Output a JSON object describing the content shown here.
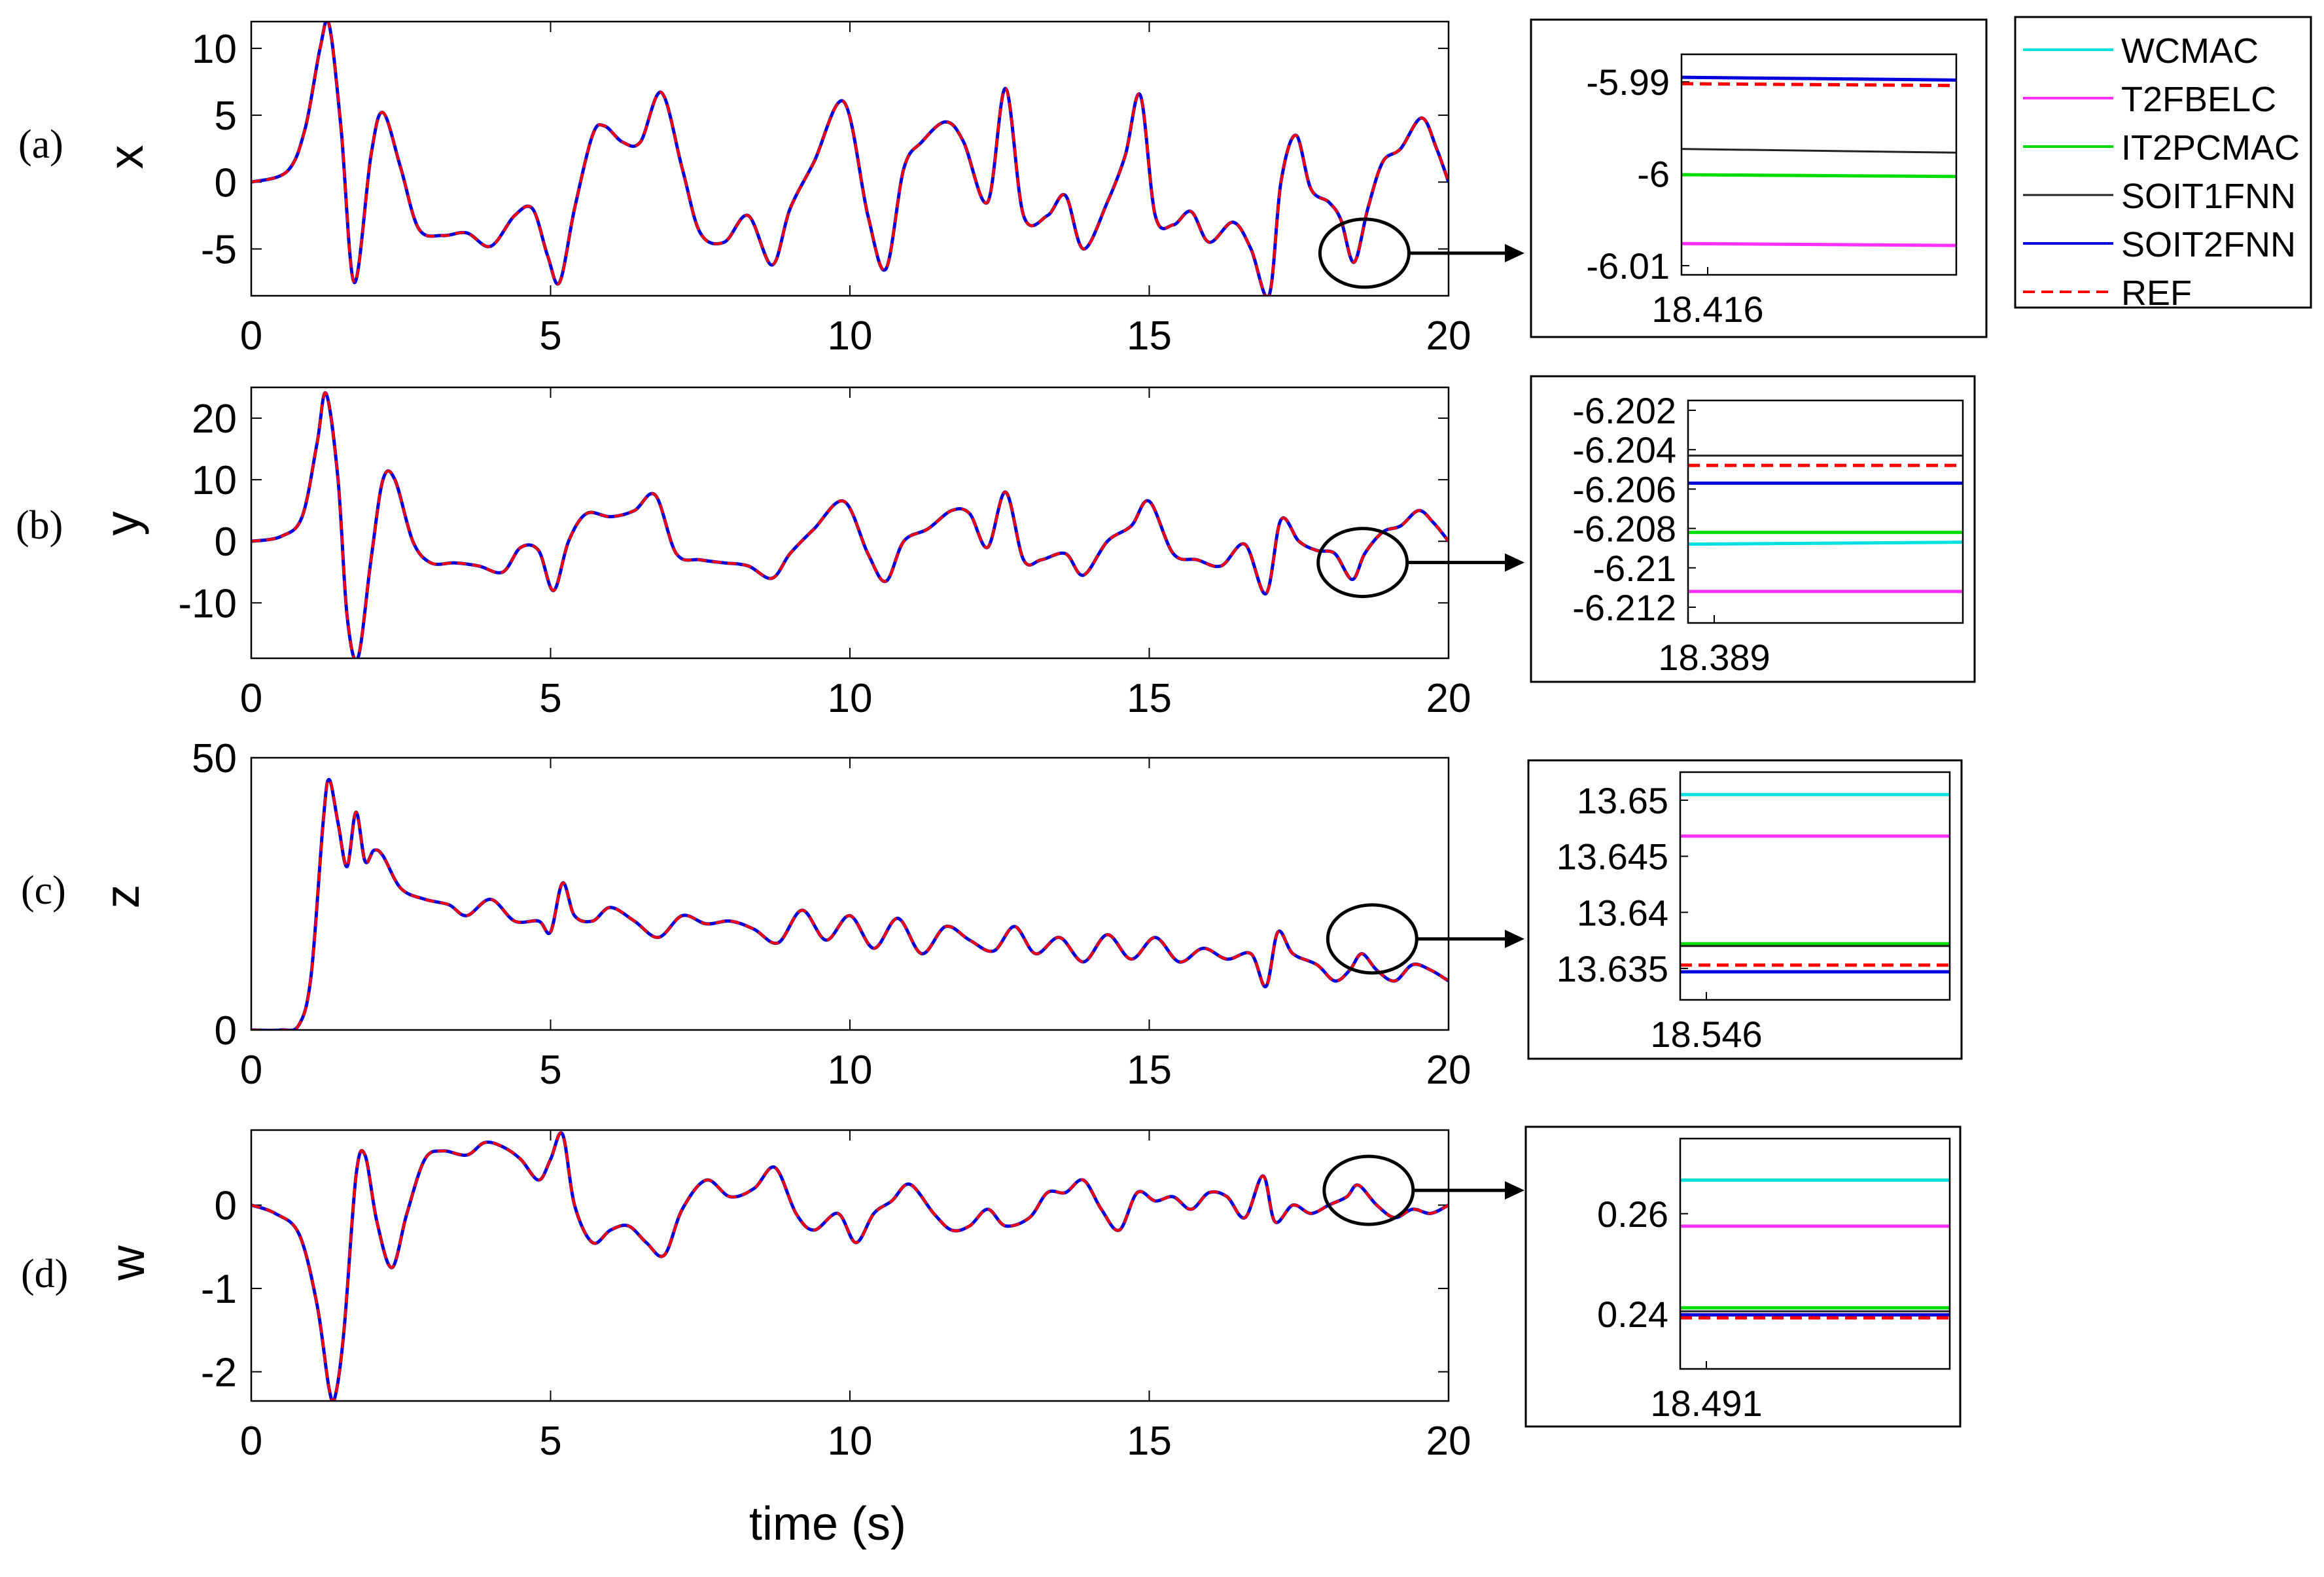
{
  "figure": {
    "xlabel": "time (s)"
  },
  "colors": {
    "WCMAC": "#00e0e0",
    "T2FBELC": "#ff30ff",
    "IT2PCMAC": "#00dd00",
    "SOIT1FNN": "#222222",
    "SOIT2FNN": "#0000dd",
    "REF": "#ff0000"
  },
  "legend": {
    "entries": [
      {
        "key": "WCMAC",
        "label": "WCMAC",
        "style": "solid"
      },
      {
        "key": "T2FBELC",
        "label": "T2FBELC",
        "style": "solid"
      },
      {
        "key": "IT2PCMAC",
        "label": "IT2PCMAC",
        "style": "solid"
      },
      {
        "key": "SOIT1FNN",
        "label": "SOIT1FNN",
        "style": "solid"
      },
      {
        "key": "SOIT2FNN",
        "label": "SOIT2FNN",
        "style": "solid"
      },
      {
        "key": "REF",
        "label": "REF",
        "style": "dashed"
      }
    ]
  },
  "chart_data": [
    {
      "type": "line",
      "panel": "(a)",
      "ylabel": "x",
      "xlim": [
        0,
        20
      ],
      "ylim": [
        -8.5,
        12
      ],
      "xticks": [
        0,
        5,
        10,
        15,
        20
      ],
      "yticks": [
        10,
        5,
        0,
        -5
      ],
      "series_names": [
        "SOIT2FNN",
        "REF"
      ],
      "highlight": {
        "t": 18.42,
        "value": -6.0
      },
      "x": [
        0,
        0.6,
        0.9,
        1.15,
        1.3,
        1.5,
        1.72,
        2.0,
        2.2,
        2.5,
        2.8,
        3.2,
        3.6,
        4.0,
        4.4,
        4.7,
        4.95,
        5.15,
        5.4,
        5.7,
        5.9,
        6.2,
        6.5,
        6.85,
        7.2,
        7.5,
        7.9,
        8.3,
        8.7,
        9.0,
        9.4,
        9.9,
        10.3,
        10.6,
        10.9,
        11.2,
        11.6,
        11.9,
        12.3,
        12.6,
        12.9,
        13.3,
        13.6,
        13.9,
        14.3,
        14.6,
        14.85,
        15.1,
        15.4,
        15.7,
        16.0,
        16.4,
        16.7,
        17.0,
        17.2,
        17.45,
        17.7,
        18.0,
        18.2,
        18.42,
        18.65,
        18.9,
        19.2,
        19.55,
        19.8,
        20.0
      ],
      "y": [
        0,
        0.8,
        4.0,
        10.0,
        11.8,
        4.0,
        -7.5,
        2.0,
        5.2,
        1.0,
        -3.5,
        -4.0,
        -3.8,
        -4.8,
        -2.5,
        -2.0,
        -5.5,
        -7.5,
        -2.0,
        3.5,
        4.2,
        3.0,
        3.0,
        6.7,
        1.0,
        -3.8,
        -4.5,
        -2.5,
        -6.2,
        -2.0,
        1.5,
        6.0,
        -2.5,
        -6.5,
        1.0,
        3.0,
        4.5,
        3.0,
        -1.5,
        7.0,
        -2.5,
        -2.5,
        -1.0,
        -5.0,
        -1.5,
        2.0,
        6.5,
        -2.5,
        -3.2,
        -2.2,
        -4.5,
        -3.0,
        -5.0,
        -8.5,
        0.0,
        3.5,
        -0.5,
        -1.5,
        -2.8,
        -6.0,
        -2.0,
        1.5,
        2.5,
        4.8,
        2.5,
        0.0
      ]
    },
    {
      "type": "line",
      "panel": "(b)",
      "ylabel": "y",
      "xlim": [
        0,
        20
      ],
      "ylim": [
        -19,
        25
      ],
      "xticks": [
        0,
        5,
        10,
        15,
        20
      ],
      "yticks": [
        20,
        10,
        0,
        -10
      ],
      "series_names": [
        "SOIT2FNN",
        "REF"
      ],
      "highlight": {
        "t": 18.39,
        "value": -6.2
      },
      "x": [
        0,
        0.5,
        0.85,
        1.1,
        1.25,
        1.45,
        1.6,
        1.78,
        2.0,
        2.2,
        2.4,
        2.7,
        3.0,
        3.4,
        3.8,
        4.2,
        4.5,
        4.8,
        5.05,
        5.3,
        5.6,
        6.0,
        6.4,
        6.75,
        7.1,
        7.5,
        7.9,
        8.3,
        8.7,
        9.0,
        9.4,
        9.9,
        10.3,
        10.6,
        10.9,
        11.3,
        11.7,
        12.0,
        12.3,
        12.6,
        12.9,
        13.2,
        13.6,
        13.9,
        14.3,
        14.7,
        15.0,
        15.4,
        15.8,
        16.2,
        16.6,
        16.95,
        17.2,
        17.5,
        17.8,
        18.1,
        18.39,
        18.6,
        18.9,
        19.2,
        19.5,
        19.75,
        20.0
      ],
      "y": [
        0,
        0.8,
        4.0,
        16.0,
        24.0,
        10.0,
        -12.0,
        -19.0,
        -3.0,
        10.0,
        10.0,
        0.0,
        -3.5,
        -3.5,
        -4.0,
        -5.0,
        -1.0,
        -1.5,
        -8.0,
        0.0,
        4.5,
        4.0,
        5.0,
        7.5,
        -2.0,
        -3.0,
        -3.5,
        -4.0,
        -6.0,
        -2.0,
        2.0,
        6.5,
        -2.0,
        -6.5,
        0.0,
        2.0,
        5.0,
        4.5,
        -1.0,
        8.0,
        -3.0,
        -3.0,
        -2.0,
        -5.5,
        0.0,
        2.5,
        6.5,
        -2.0,
        -3.0,
        -4.0,
        -0.5,
        -8.5,
        3.5,
        0.0,
        -1.5,
        -2.0,
        -6.2,
        -2.0,
        1.5,
        2.5,
        5.0,
        3.0,
        0.0
      ]
    },
    {
      "type": "line",
      "panel": "(c)",
      "ylabel": "z",
      "xlim": [
        0,
        20
      ],
      "ylim": [
        0,
        50
      ],
      "xticks": [
        0,
        5,
        10,
        15,
        20
      ],
      "yticks": [
        50,
        0
      ],
      "series_names": [
        "SOIT2FNN",
        "REF"
      ],
      "highlight": {
        "t": 18.55,
        "value": 13.6
      },
      "x": [
        0,
        0.5,
        0.8,
        1.0,
        1.2,
        1.3,
        1.45,
        1.6,
        1.75,
        1.9,
        2.05,
        2.2,
        2.5,
        2.9,
        3.3,
        3.6,
        4.0,
        4.4,
        4.8,
        5.0,
        5.2,
        5.4,
        5.7,
        6.0,
        6.4,
        6.8,
        7.2,
        7.6,
        8.0,
        8.4,
        8.8,
        9.2,
        9.6,
        10.0,
        10.4,
        10.8,
        11.2,
        11.6,
        12.0,
        12.4,
        12.75,
        13.1,
        13.5,
        13.9,
        14.3,
        14.7,
        15.1,
        15.5,
        15.9,
        16.3,
        16.7,
        16.95,
        17.15,
        17.4,
        17.8,
        18.1,
        18.35,
        18.55,
        18.8,
        19.1,
        19.4,
        19.7,
        20.0
      ],
      "y": [
        0,
        0,
        1.0,
        10.0,
        38.0,
        46.0,
        38.0,
        30.0,
        40.0,
        31.0,
        33.0,
        32.0,
        26.0,
        24.0,
        23.0,
        21.0,
        24.0,
        20.0,
        20.0,
        18.0,
        27.0,
        21.0,
        20.0,
        22.5,
        20.0,
        17.0,
        21.0,
        19.5,
        20.0,
        18.5,
        16.0,
        22.0,
        16.5,
        21.0,
        15.0,
        20.5,
        14.0,
        19.0,
        16.5,
        14.5,
        19.0,
        14.0,
        17.0,
        12.5,
        17.5,
        13.0,
        17.0,
        12.5,
        15.0,
        13.0,
        14.0,
        8.0,
        18.0,
        14.0,
        12.0,
        9.0,
        11.0,
        14.0,
        11.0,
        9.0,
        12.0,
        11.0,
        9.0
      ]
    },
    {
      "type": "line",
      "panel": "(d)",
      "ylabel": "w",
      "xlim": [
        0,
        20
      ],
      "ylim": [
        -2.35,
        0.9
      ],
      "xticks": [
        0,
        5,
        10,
        15,
        20
      ],
      "yticks": [
        0,
        -1,
        -2
      ],
      "series_names": [
        "SOIT2FNN",
        "REF"
      ],
      "highlight": {
        "t": 18.49,
        "value": 0.24
      },
      "x": [
        0,
        0.4,
        0.8,
        1.1,
        1.3,
        1.4,
        1.55,
        1.75,
        1.9,
        2.1,
        2.35,
        2.6,
        2.9,
        3.2,
        3.6,
        3.9,
        4.2,
        4.5,
        4.8,
        5.0,
        5.2,
        5.4,
        5.7,
        6.0,
        6.3,
        6.6,
        6.9,
        7.2,
        7.6,
        8.0,
        8.4,
        8.75,
        9.1,
        9.4,
        9.8,
        10.1,
        10.4,
        10.7,
        11.0,
        11.4,
        11.7,
        12.0,
        12.3,
        12.6,
        13.0,
        13.3,
        13.6,
        13.9,
        14.2,
        14.5,
        14.8,
        15.1,
        15.4,
        15.7,
        16.0,
        16.3,
        16.6,
        16.9,
        17.1,
        17.4,
        17.7,
        18.0,
        18.3,
        18.49,
        18.8,
        19.1,
        19.4,
        19.7,
        20.0
      ],
      "y": [
        0,
        -0.1,
        -0.35,
        -1.2,
        -2.2,
        -2.3,
        -1.5,
        0.35,
        0.6,
        -0.2,
        -0.75,
        -0.1,
        0.55,
        0.65,
        0.6,
        0.75,
        0.7,
        0.55,
        0.3,
        0.55,
        0.85,
        0.0,
        -0.45,
        -0.3,
        -0.25,
        -0.45,
        -0.6,
        -0.05,
        0.3,
        0.1,
        0.2,
        0.45,
        -0.1,
        -0.3,
        -0.1,
        -0.45,
        -0.1,
        0.05,
        0.25,
        -0.1,
        -0.3,
        -0.25,
        -0.05,
        -0.25,
        -0.15,
        0.15,
        0.15,
        0.3,
        -0.05,
        -0.3,
        0.15,
        0.05,
        0.1,
        -0.05,
        0.15,
        0.1,
        -0.15,
        0.35,
        -0.2,
        0.0,
        -0.1,
        0.0,
        0.1,
        0.24,
        0.0,
        -0.15,
        -0.05,
        -0.1,
        0.0
      ]
    },
    {
      "type": "line",
      "panel": "zoom-a",
      "ylim": [
        -6.011,
        -5.987
      ],
      "yticks": [
        -5.99,
        -6,
        -6.01
      ],
      "ytick_labels": [
        "-5.99",
        "-6",
        "-6.01"
      ],
      "xlim": [
        18.4159,
        18.4162
      ],
      "xtick_label": "18.416",
      "series": [
        {
          "name": "SOIT2FNN",
          "values": [
            -5.9895,
            -5.9898
          ]
        },
        {
          "name": "REF",
          "values": [
            -5.9902,
            -5.9904
          ]
        },
        {
          "name": "SOIT1FNN",
          "values": [
            -5.9973,
            -5.9977
          ]
        },
        {
          "name": "IT2PCMAC",
          "values": [
            -6.0001,
            -6.0003
          ]
        },
        {
          "name": "T2FBELC",
          "values": [
            -6.0076,
            -6.0078
          ]
        }
      ]
    },
    {
      "type": "line",
      "panel": "zoom-b",
      "ylim": [
        -6.2128,
        -6.2015
      ],
      "yticks": [
        -6.202,
        -6.204,
        -6.206,
        -6.208,
        -6.21,
        -6.212
      ],
      "ytick_labels": [
        "-6.202",
        "-6.204",
        "-6.206",
        "-6.208",
        "-6.21",
        "-6.212"
      ],
      "xlim": [
        18.3889,
        18.3892
      ],
      "xtick_label": "18.389",
      "series": [
        {
          "name": "SOIT1FNN",
          "values": [
            -6.2043,
            -6.2043
          ]
        },
        {
          "name": "REF",
          "values": [
            -6.2048,
            -6.2048
          ]
        },
        {
          "name": "SOIT2FNN",
          "values": [
            -6.2057,
            -6.2057
          ]
        },
        {
          "name": "IT2PCMAC",
          "values": [
            -6.2082,
            -6.2082
          ]
        },
        {
          "name": "WCMAC",
          "values": [
            -6.2088,
            -6.2087
          ]
        },
        {
          "name": "T2FBELC",
          "values": [
            -6.2112,
            -6.2112
          ]
        }
      ]
    },
    {
      "type": "line",
      "panel": "zoom-c",
      "ylim": [
        13.6322,
        13.6525
      ],
      "yticks": [
        13.65,
        13.645,
        13.64,
        13.635
      ],
      "ytick_labels": [
        "13.65",
        "13.645",
        "13.64",
        "13.635"
      ],
      "xlim": [
        18.5459,
        18.5462
      ],
      "xtick_label": "18.546",
      "series": [
        {
          "name": "WCMAC",
          "values": [
            13.6505,
            13.6505
          ]
        },
        {
          "name": "T2FBELC",
          "values": [
            13.6468,
            13.6468
          ]
        },
        {
          "name": "IT2PCMAC",
          "values": [
            13.6372,
            13.6372
          ]
        },
        {
          "name": "SOIT1FNN",
          "values": [
            13.637,
            13.637
          ]
        },
        {
          "name": "REF",
          "values": [
            13.6353,
            13.6353
          ]
        },
        {
          "name": "SOIT2FNN",
          "values": [
            13.6347,
            13.6347
          ]
        }
      ]
    },
    {
      "type": "line",
      "panel": "zoom-d",
      "ylim": [
        0.229,
        0.275
      ],
      "yticks": [
        0.26,
        0.24
      ],
      "ytick_labels": [
        "0.26",
        "0.24"
      ],
      "xlim": [
        18.4909,
        18.4912
      ],
      "xtick_label": "18.491",
      "series": [
        {
          "name": "WCMAC",
          "values": [
            0.2667,
            0.2667
          ]
        },
        {
          "name": "T2FBELC",
          "values": [
            0.2575,
            0.2575
          ]
        },
        {
          "name": "IT2PCMAC",
          "values": [
            0.2412,
            0.2412
          ]
        },
        {
          "name": "SOIT1FNN",
          "values": [
            0.2405,
            0.2405
          ]
        },
        {
          "name": "SOIT2FNN",
          "values": [
            0.2398,
            0.2398
          ]
        },
        {
          "name": "REF",
          "values": [
            0.2392,
            0.2392
          ]
        }
      ]
    }
  ]
}
